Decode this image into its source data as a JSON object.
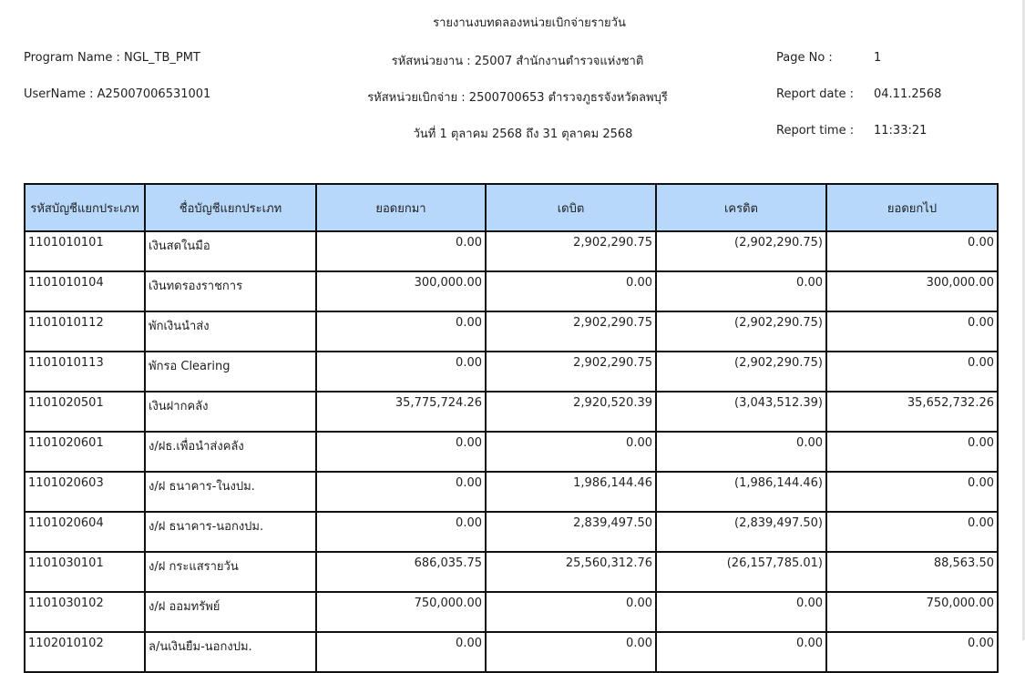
{
  "report": {
    "title": "รายงานงบทดลองหน่วยเบิกจ่ายรายวัน",
    "program_name": "Program Name : NGL_TB_PMT",
    "username": "UserName : A25007006531001",
    "agency": "รหัสหน่วยงาน : 25007 สำนักงานตำรวจแห่งชาติ",
    "disbursing_unit": "รหัสหน่วยเบิกจ่าย : 2500700653 ตำรวจภูธรจังหวัดลพบุรี",
    "period": "วันที่ 1 ตุลาคม 2568 ถึง 31 ตุลาคม 2568",
    "page_label": "Page No :",
    "page_value": "1",
    "date_label": "Report date :",
    "date_value": "04.11.2568",
    "time_label": "Report time :",
    "time_value": "11:33:21"
  },
  "table": {
    "headers": [
      "รหัสบัญชีแยกประเภท",
      "ชื่อบัญชีแยกประเภท",
      "ยอดยกมา",
      "เดบิต",
      "เครดิต",
      "ยอดยกไป"
    ],
    "rows": [
      [
        "1101010101",
        "เงินสดในมือ",
        "0.00",
        "2,902,290.75",
        "(2,902,290.75)",
        "0.00"
      ],
      [
        "1101010104",
        "เงินทดรองราชการ",
        "300,000.00",
        "0.00",
        "0.00",
        "300,000.00"
      ],
      [
        "1101010112",
        "พักเงินนำส่ง",
        "0.00",
        "2,902,290.75",
        "(2,902,290.75)",
        "0.00"
      ],
      [
        "1101010113",
        "พักรอ Clearing",
        "0.00",
        "2,902,290.75",
        "(2,902,290.75)",
        "0.00"
      ],
      [
        "1101020501",
        "เงินฝากคลัง",
        "35,775,724.26",
        "2,920,520.39",
        "(3,043,512.39)",
        "35,652,732.26"
      ],
      [
        "1101020601",
        "ง/ฝธ.เพื่อนำส่งคลัง",
        "0.00",
        "0.00",
        "0.00",
        "0.00"
      ],
      [
        "1101020603",
        "ง/ฝ ธนาคาร-ในงปม.",
        "0.00",
        "1,986,144.46",
        "(1,986,144.46)",
        "0.00"
      ],
      [
        "1101020604",
        "ง/ฝ ธนาคาร-นอกงปม.",
        "0.00",
        "2,839,497.50",
        "(2,839,497.50)",
        "0.00"
      ],
      [
        "1101030101",
        "ง/ฝ กระแสรายวัน",
        "686,035.75",
        "25,560,312.76",
        "(26,157,785.01)",
        "88,563.50"
      ],
      [
        "1101030102",
        "ง/ฝ ออมทรัพย์",
        "750,000.00",
        "0.00",
        "0.00",
        "750,000.00"
      ],
      [
        "1102010102",
        "ล/นเงินยืม-นอกงปม.",
        "0.00",
        "0.00",
        "0.00",
        "0.00"
      ]
    ]
  },
  "colors": {
    "header_bg": "#b7d7fb",
    "border": "#111111"
  }
}
